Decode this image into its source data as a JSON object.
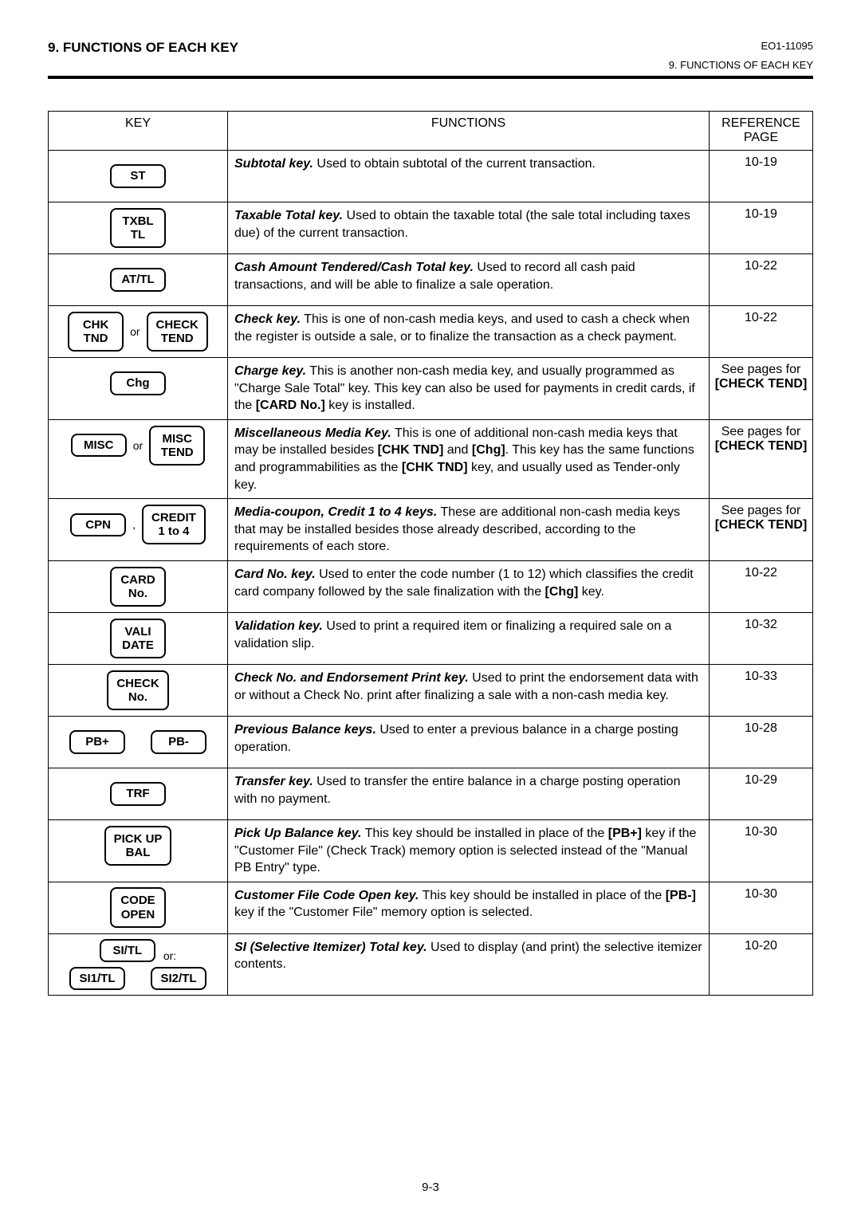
{
  "header": {
    "section_left": "9.  FUNCTIONS OF EACH KEY",
    "doc_id": "EO1-11095",
    "section_right": "9.  FUNCTIONS OF EACH KEY"
  },
  "table": {
    "columns": {
      "key": "KEY",
      "func": "FUNCTIONS",
      "ref": "REFERENCE PAGE"
    }
  },
  "rows": [
    {
      "keys": [
        [
          {
            "label": "ST"
          }
        ]
      ],
      "lead": "Subtotal key.",
      "body": "  Used to obtain subtotal of the current transaction.",
      "ref": "10-19"
    },
    {
      "keys": [
        [
          {
            "label": "TXBL\nTL"
          }
        ]
      ],
      "lead": "Taxable Total key.",
      "body": "  Used to obtain the taxable total (the sale total including taxes due) of the current transaction.",
      "ref": "10-19"
    },
    {
      "keys": [
        [
          {
            "label": "AT/TL"
          }
        ]
      ],
      "lead": "Cash Amount Tendered/Cash Total key.",
      "body": "  Used to record all cash paid transactions, and will be able to finalize a sale operation.",
      "ref": "10-22"
    },
    {
      "keys": [
        [
          {
            "label": "CHK\nTND"
          },
          {
            "sep": "or"
          },
          {
            "label": "CHECK\nTEND"
          }
        ]
      ],
      "lead": "Check key.",
      "body": "  This is one of non-cash media keys, and used to cash a check when the register is outside a sale, or to finalize the transaction as a check payment.",
      "ref": "10-22"
    },
    {
      "keys": [
        [
          {
            "label": "Chg"
          }
        ]
      ],
      "lead": "Charge key.",
      "body_html": "  This is another non-cash media key, and usually programmed as \"Charge Sale Total\" key.  This key can also be used for payments in credit cards, if the <b>[CARD No.]</b> key is installed.",
      "ref_html": "See pages for<br><b>[CHECK TEND]</b>"
    },
    {
      "keys": [
        [
          {
            "label": "MISC"
          },
          {
            "sep": "or"
          },
          {
            "label": "MISC\nTEND"
          }
        ]
      ],
      "lead": "Miscellaneous Media Key.",
      "body_html": "  This is one of additional non-cash media keys that may be installed besides <b>[CHK TND]</b> and <b>[Chg]</b>.  This key has the same functions and programmabilities as the <b>[CHK TND]</b> key, and usually used as Tender-only key.",
      "ref_html": "See pages for<br><b>[CHECK TEND]</b>"
    },
    {
      "keys": [
        [
          {
            "label": "CPN"
          },
          {
            "sep": ","
          },
          {
            "label": "CREDIT\n1 to 4"
          }
        ]
      ],
      "lead": "Media-coupon, Credit 1 to 4 keys.",
      "body": "  These are additional non-cash media keys that may be installed besides those already described, according to the requirements of each store.",
      "ref_html": "See pages for<br><b>[CHECK TEND]</b>"
    },
    {
      "keys": [
        [
          {
            "label": "CARD\nNo."
          }
        ]
      ],
      "lead": "Card No. key.",
      "body_html": "  Used to enter the code number (1 to 12) which classifies the credit card company followed by the sale finalization with the <b>[Chg]</b> key.",
      "ref": "10-22"
    },
    {
      "keys": [
        [
          {
            "label": "VALI\nDATE"
          }
        ]
      ],
      "lead": "Validation key.",
      "body": "  Used to print a required item or finalizing a required sale on a validation slip.",
      "ref": "10-32"
    },
    {
      "keys": [
        [
          {
            "label": "CHECK\nNo."
          }
        ]
      ],
      "lead": "Check No. and Endorsement Print key.",
      "body": "  Used to print the endorsement data with or without a Check No. print after finalizing a sale with a non-cash media key.",
      "ref": "10-33"
    },
    {
      "keys": [
        [
          {
            "label": "PB+"
          },
          {
            "gap": true
          },
          {
            "label": "PB-"
          }
        ]
      ],
      "lead": "Previous Balance keys.",
      "body": "  Used to enter a previous balance in a charge posting operation.",
      "ref": "10-28"
    },
    {
      "keys": [
        [
          {
            "label": "TRF"
          }
        ]
      ],
      "lead": "Transfer key.",
      "body": "  Used to transfer the entire balance in a charge posting operation with no payment.",
      "ref": "10-29"
    },
    {
      "keys": [
        [
          {
            "label": "PICK UP\nBAL"
          }
        ]
      ],
      "lead": "Pick Up Balance key.",
      "body_html": "  This key should be installed in place of the <b>[PB+]</b> key if the \"Customer File\" (Check Track) memory option is selected instead of the \"Manual PB Entry\" type.",
      "ref": "10-30"
    },
    {
      "keys": [
        [
          {
            "label": "CODE\nOPEN"
          }
        ]
      ],
      "lead": "Customer File Code Open key.",
      "body_html": "  This key should be installed in place of the <b>[PB-]</b> key if the \"Customer File\" memory option is selected.",
      "ref": "10-30"
    },
    {
      "keys": [
        [
          {
            "label": "SI/TL"
          },
          {
            "after": "or:"
          }
        ],
        [
          {
            "label": "SI1/TL"
          },
          {
            "gap": true
          },
          {
            "label": "SI2/TL"
          }
        ]
      ],
      "lead": "SI (Selective Itemizer) Total key.",
      "body": "  Used to display (and print) the selective itemizer contents.",
      "ref": "10-20"
    }
  ],
  "page_number": "9-3"
}
